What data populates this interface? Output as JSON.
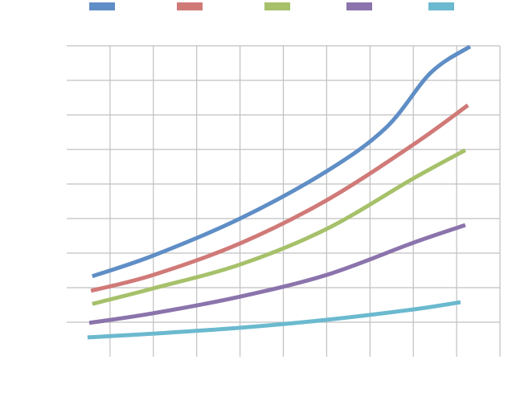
{
  "chart_data": {
    "type": "line",
    "title": "",
    "xlabel": "",
    "ylabel": "",
    "xlim": [
      0,
      10
    ],
    "ylim": [
      0,
      9
    ],
    "grid": true,
    "legend_position": "top",
    "series": [
      {
        "name": "",
        "color": "#5f8ec6",
        "points": [
          [
            0.59,
            2.33
          ],
          [
            2,
            2.93
          ],
          [
            4,
            4.0
          ],
          [
            6,
            5.37
          ],
          [
            7.37,
            6.63
          ],
          [
            8.41,
            8.23
          ],
          [
            9.31,
            8.98
          ]
        ]
      },
      {
        "name": "",
        "color": "#d07a78",
        "points": [
          [
            0.56,
            1.91
          ],
          [
            2,
            2.37
          ],
          [
            4,
            3.28
          ],
          [
            6,
            4.53
          ],
          [
            8,
            6.14
          ],
          [
            9.26,
            7.28
          ]
        ]
      },
      {
        "name": "",
        "color": "#a6c16a",
        "points": [
          [
            0.59,
            1.53
          ],
          [
            2,
            1.98
          ],
          [
            4,
            2.67
          ],
          [
            6,
            3.7
          ],
          [
            8,
            5.16
          ],
          [
            9.2,
            5.98
          ]
        ]
      },
      {
        "name": "",
        "color": "#8b74ac",
        "points": [
          [
            0.52,
            0.98
          ],
          [
            2,
            1.26
          ],
          [
            4,
            1.74
          ],
          [
            6,
            2.37
          ],
          [
            8,
            3.3
          ],
          [
            9.2,
            3.81
          ]
        ]
      },
      {
        "name": "",
        "color": "#6bb9cf",
        "points": [
          [
            0.48,
            0.56
          ],
          [
            2,
            0.67
          ],
          [
            4,
            0.84
          ],
          [
            6,
            1.07
          ],
          [
            8,
            1.37
          ],
          [
            9.09,
            1.58
          ]
        ]
      }
    ]
  }
}
